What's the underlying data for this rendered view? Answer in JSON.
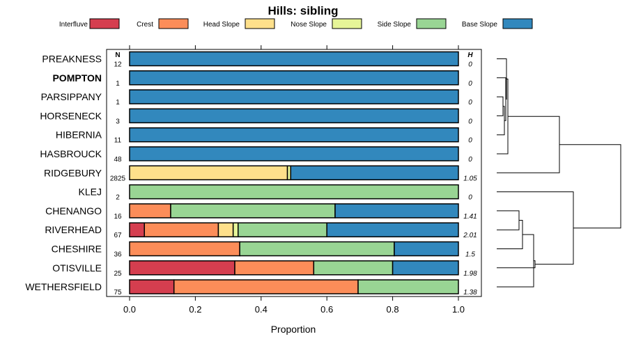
{
  "chart_data": {
    "type": "bar",
    "orientation": "horizontal",
    "stacked": true,
    "title": "Hills: sibling",
    "xlabel": "Proportion",
    "ylabel": "",
    "xlim": [
      0,
      1
    ],
    "x_ticks": [
      "0.0",
      "0.2",
      "0.4",
      "0.6",
      "0.8",
      "1.0"
    ],
    "x_tick_values": [
      0,
      0.2,
      0.4,
      0.6,
      0.8,
      1.0
    ],
    "n_header": "N",
    "h_header": "H",
    "highlighted": "POMPTON",
    "legend_placement": "top",
    "legend": [
      {
        "name": "Interfluve",
        "color": "#d53e4f"
      },
      {
        "name": "Crest",
        "color": "#fc8d59"
      },
      {
        "name": "Head Slope",
        "color": "#fee08b"
      },
      {
        "name": "Nose Slope",
        "color": "#e6f598"
      },
      {
        "name": "Side Slope",
        "color": "#99d594"
      },
      {
        "name": "Base Slope",
        "color": "#3288bd"
      }
    ],
    "categories": [
      "PREAKNESS",
      "POMPTON",
      "PARSIPPANY",
      "HORSENECK",
      "HIBERNIA",
      "HASBROUCK",
      "RIDGEBURY",
      "KLEJ",
      "CHENANGO",
      "RIVERHEAD",
      "CHESHIRE",
      "OTISVILLE",
      "WETHERSFIELD"
    ],
    "n_values": [
      "12",
      "1",
      "1",
      "3",
      "11",
      "48",
      "2825",
      "2",
      "16",
      "67",
      "36",
      "25",
      "75"
    ],
    "h_values": [
      "0",
      "0",
      "0",
      "0",
      "0",
      "0",
      "1.05",
      "0",
      "1.41",
      "2.01",
      "1.5",
      "1.98",
      "1.38"
    ],
    "series": [
      {
        "name": "Interfluve",
        "values": [
          0,
          0,
          0,
          0,
          0,
          0,
          0,
          0,
          0,
          0.045,
          0,
          0.32,
          0.135
        ]
      },
      {
        "name": "Crest",
        "values": [
          0,
          0,
          0,
          0,
          0,
          0,
          0,
          0,
          0.125,
          0.225,
          0.335,
          0.24,
          0.56
        ]
      },
      {
        "name": "Head Slope",
        "values": [
          0,
          0,
          0,
          0,
          0,
          0,
          0.48,
          0,
          0,
          0.045,
          0,
          0,
          0
        ]
      },
      {
        "name": "Nose Slope",
        "values": [
          0,
          0,
          0,
          0,
          0,
          0,
          0.01,
          0,
          0,
          0.015,
          0,
          0,
          0
        ]
      },
      {
        "name": "Side Slope",
        "values": [
          0,
          0,
          0,
          0,
          0,
          0,
          0,
          1.0,
          0.5,
          0.27,
          0.47,
          0.24,
          0.305
        ]
      },
      {
        "name": "Base Slope",
        "values": [
          1.0,
          1.0,
          1.0,
          1.0,
          1.0,
          1.0,
          0.51,
          0,
          0.375,
          0.4,
          0.195,
          0.2,
          0
        ]
      }
    ]
  }
}
